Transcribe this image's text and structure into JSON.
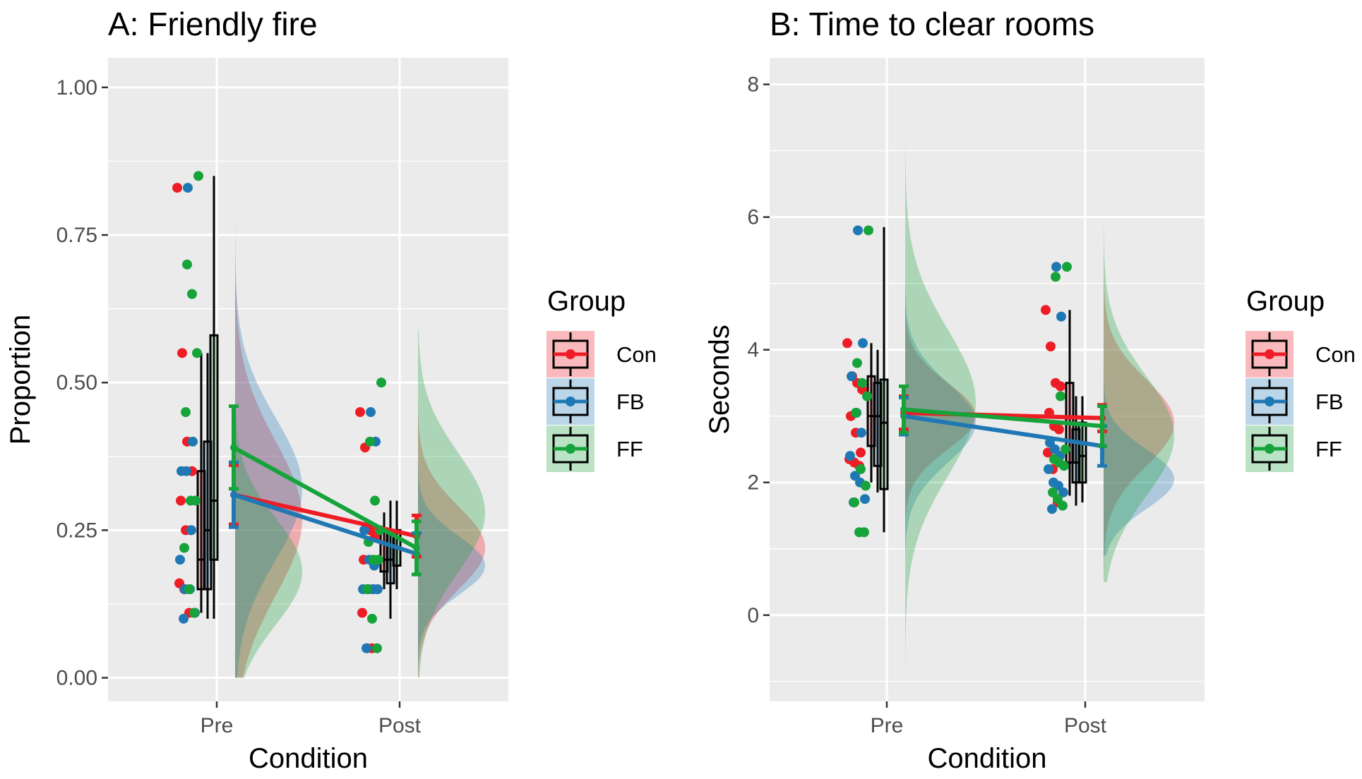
{
  "chart_data": [
    {
      "type": "raincloud",
      "title": "A: Friendly fire",
      "xlabel": "Condition",
      "ylabel": "Proportion",
      "categories": [
        "Pre",
        "Post"
      ],
      "ylim": [
        -0.04,
        1.05
      ],
      "yticks": [
        0,
        0.25,
        0.5,
        0.75,
        1
      ],
      "ytick_labels": [
        "0.00",
        "0.25",
        "0.50",
        "0.75",
        "1.00"
      ],
      "grid": true,
      "legend": {
        "title": "Group",
        "position": "right",
        "entries": [
          "Con",
          "FB",
          "FF"
        ]
      },
      "series": [
        {
          "name": "Con",
          "color": "#ee1c25",
          "means": [
            0.31,
            0.24
          ],
          "errors": [
            0.05,
            0.035
          ],
          "points": [
            [
              0.83,
              0.55,
              0.4,
              0.35,
              0.3,
              0.25,
              0.25,
              0.16,
              0.15,
              0.11
            ],
            [
              0.45,
              0.39,
              0.25,
              0.24,
              0.2,
              0.15,
              0.15,
              0.11,
              0.05,
              0.05
            ]
          ],
          "box": [
            [
              0.11,
              0.15,
              0.2,
              0.35,
              0.55
            ],
            [
              0.15,
              0.18,
              0.2,
              0.25,
              0.28
            ]
          ],
          "density": [
            {
              "min": 0.0,
              "max": 0.85,
              "mode": 0.27,
              "sd": 0.13
            },
            {
              "min": 0.0,
              "max": 0.47,
              "mode": 0.22,
              "sd": 0.07
            }
          ]
        },
        {
          "name": "FB",
          "color": "#1f78b4",
          "means": [
            0.31,
            0.21
          ],
          "errors": [
            0.055,
            0.035
          ],
          "points": [
            [
              0.83,
              0.4,
              0.35,
              0.35,
              0.25,
              0.2,
              0.15,
              0.15,
              0.11,
              0.1
            ],
            [
              0.45,
              0.4,
              0.25,
              0.2,
              0.19,
              0.15,
              0.15,
              0.15,
              0.15,
              0.05
            ]
          ],
          "box": [
            [
              0.1,
              0.15,
              0.25,
              0.4,
              0.55
            ],
            [
              0.1,
              0.16,
              0.2,
              0.25,
              0.3
            ]
          ],
          "density": [
            {
              "min": 0.0,
              "max": 0.85,
              "mode": 0.32,
              "sd": 0.12
            },
            {
              "min": 0.0,
              "max": 0.47,
              "mode": 0.19,
              "sd": 0.05
            }
          ]
        },
        {
          "name": "FF",
          "color": "#16a33a",
          "means": [
            0.39,
            0.22
          ],
          "errors": [
            0.07,
            0.045
          ],
          "points": [
            [
              0.85,
              0.7,
              0.65,
              0.55,
              0.45,
              0.3,
              0.3,
              0.22,
              0.15,
              0.11
            ],
            [
              0.5,
              0.4,
              0.3,
              0.25,
              0.23,
              0.2,
              0.2,
              0.15,
              0.1,
              0.05
            ]
          ],
          "box": [
            [
              0.1,
              0.2,
              0.3,
              0.58,
              0.85
            ],
            [
              0.15,
              0.19,
              0.22,
              0.25,
              0.3
            ]
          ],
          "density": [
            {
              "min": 0.0,
              "max": 1.0,
              "mode": 0.18,
              "sd": 0.09
            },
            {
              "min": 0.0,
              "max": 0.59,
              "mode": 0.28,
              "sd": 0.1
            }
          ]
        }
      ]
    },
    {
      "type": "raincloud",
      "title": "B: Time to clear rooms",
      "xlabel": "Condition",
      "ylabel": "Seconds",
      "categories": [
        "Pre",
        "Post"
      ],
      "ylim": [
        -1.3,
        8.4
      ],
      "yticks": [
        0,
        2,
        4,
        6,
        8
      ],
      "ytick_labels": [
        "0",
        "2",
        "4",
        "6",
        "8"
      ],
      "grid": true,
      "legend": {
        "title": "Group",
        "position": "right",
        "entries": [
          "Con",
          "FB",
          "FF"
        ]
      },
      "series": [
        {
          "name": "Con",
          "color": "#ee1c25",
          "means": [
            3.05,
            2.97
          ],
          "errors": [
            0.25,
            0.2
          ],
          "points": [
            [
              4.1,
              3.6,
              3.5,
              3.4,
              3.0,
              2.75,
              2.45,
              2.35,
              2.3,
              2.25
            ],
            [
              4.6,
              4.05,
              3.5,
              3.45,
              3.05,
              2.85,
              2.8,
              2.45,
              2.2,
              1.7
            ]
          ],
          "box": [
            [
              2.0,
              2.55,
              3.0,
              3.6,
              4.1
            ],
            [
              1.8,
              2.3,
              2.9,
              3.5,
              4.6
            ]
          ],
          "density": [
            {
              "min": 1.0,
              "max": 5.3,
              "mode": 3.0,
              "sd": 0.5
            },
            {
              "min": 0.6,
              "max": 6.0,
              "mode": 2.9,
              "sd": 0.65
            }
          ]
        },
        {
          "name": "FB",
          "color": "#1f78b4",
          "means": [
            3.0,
            2.55
          ],
          "errors": [
            0.28,
            0.3
          ],
          "points": [
            [
              5.8,
              4.1,
              3.6,
              3.05,
              2.75,
              2.4,
              2.1,
              2.0,
              1.75,
              1.7
            ],
            [
              5.25,
              4.5,
              2.6,
              2.5,
              2.4,
              2.2,
              2.0,
              1.95,
              1.85,
              1.6
            ]
          ],
          "box": [
            [
              1.85,
              2.25,
              3.0,
              3.5,
              4.0
            ],
            [
              1.65,
              2.0,
              2.3,
              2.8,
              3.3
            ]
          ],
          "density": [
            {
              "min": 1.0,
              "max": 5.5,
              "mode": 2.9,
              "sd": 0.6
            },
            {
              "min": 0.9,
              "max": 5.3,
              "mode": 2.05,
              "sd": 0.45
            }
          ]
        },
        {
          "name": "FF",
          "color": "#16a33a",
          "means": [
            3.1,
            2.85
          ],
          "errors": [
            0.35,
            0.3
          ],
          "points": [
            [
              5.8,
              3.8,
              3.5,
              3.3,
              3.05,
              2.2,
              1.95,
              1.7,
              1.25,
              1.25
            ],
            [
              5.25,
              5.1,
              3.3,
              2.5,
              2.35,
              2.3,
              2.25,
              1.85,
              1.75,
              1.65
            ]
          ],
          "box": [
            [
              1.25,
              1.9,
              2.9,
              3.55,
              5.85
            ],
            [
              1.7,
              2.0,
              2.4,
              2.9,
              3.3
            ]
          ],
          "density": [
            {
              "min": -0.85,
              "max": 7.95,
              "mode": 3.2,
              "sd": 1.1
            },
            {
              "min": 0.5,
              "max": 6.4,
              "mode": 2.7,
              "sd": 0.9
            }
          ]
        }
      ]
    }
  ]
}
